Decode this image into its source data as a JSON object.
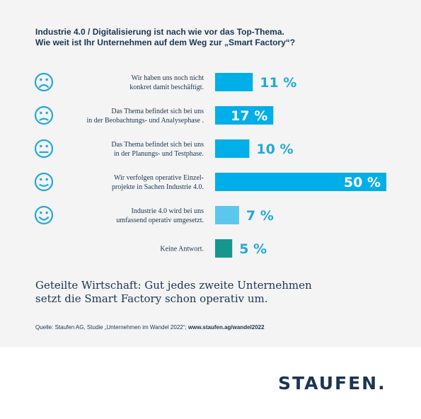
{
  "title": {
    "line1": "Industrie 4.0 / Digitalisierung ist nach wie vor das Top-Thema.",
    "line2": "Wie weit ist Ihr Unternehmen auf dem Weg zur „Smart Factory“?"
  },
  "chart_data": {
    "type": "bar",
    "orientation": "horizontal",
    "unit": "%",
    "rows": [
      {
        "icon": "sad-face-icon",
        "label_lines": [
          "Wir haben uns noch nicht",
          "konkret damit beschäftigt."
        ],
        "value": 11,
        "value_label": "11 %",
        "color": "#00aee8"
      },
      {
        "icon": "frowning-face-icon",
        "label_lines": [
          "Das Thema befindet sich bei uns",
          "in der Beobachtungs- und Analysephase ."
        ],
        "value": 17,
        "value_label": "17 %",
        "color": "#00aee8"
      },
      {
        "icon": "neutral-face-icon",
        "label_lines": [
          "Das Thema befindet sich bei uns",
          "in der Planungs- und Testphase."
        ],
        "value": 10,
        "value_label": "10 %",
        "color": "#00aee8"
      },
      {
        "icon": "slight-smile-face-icon",
        "label_lines": [
          "Wir verfolgen operative Einzel-",
          "projekte in Sachen Industrie 4.0."
        ],
        "value": 50,
        "value_label": "50 %",
        "color": "#00aee8"
      },
      {
        "icon": "happy-face-icon",
        "label_lines": [
          "Industrie 4.0 wird bei uns",
          "umfassend operativ umgesetzt."
        ],
        "value": 7,
        "value_label": "7 %",
        "color": "#5cc7ed"
      },
      {
        "icon": "",
        "label_lines": [
          "Keine Antwort."
        ],
        "value": 5,
        "value_label": "5 %",
        "color": "#17968e"
      }
    ]
  },
  "summary": {
    "line1": "Geteilte Wirtschaft: Gut jedes zweite Unternehmen",
    "line2": "setzt die Smart Factory schon operativ um."
  },
  "source": {
    "prefix": "Quelle: Staufen AG, Studie „Unternehmen im Wandel 2022“; ",
    "link": "www.staufen.ag/wandel2022"
  },
  "logo": "STAUFEN."
}
